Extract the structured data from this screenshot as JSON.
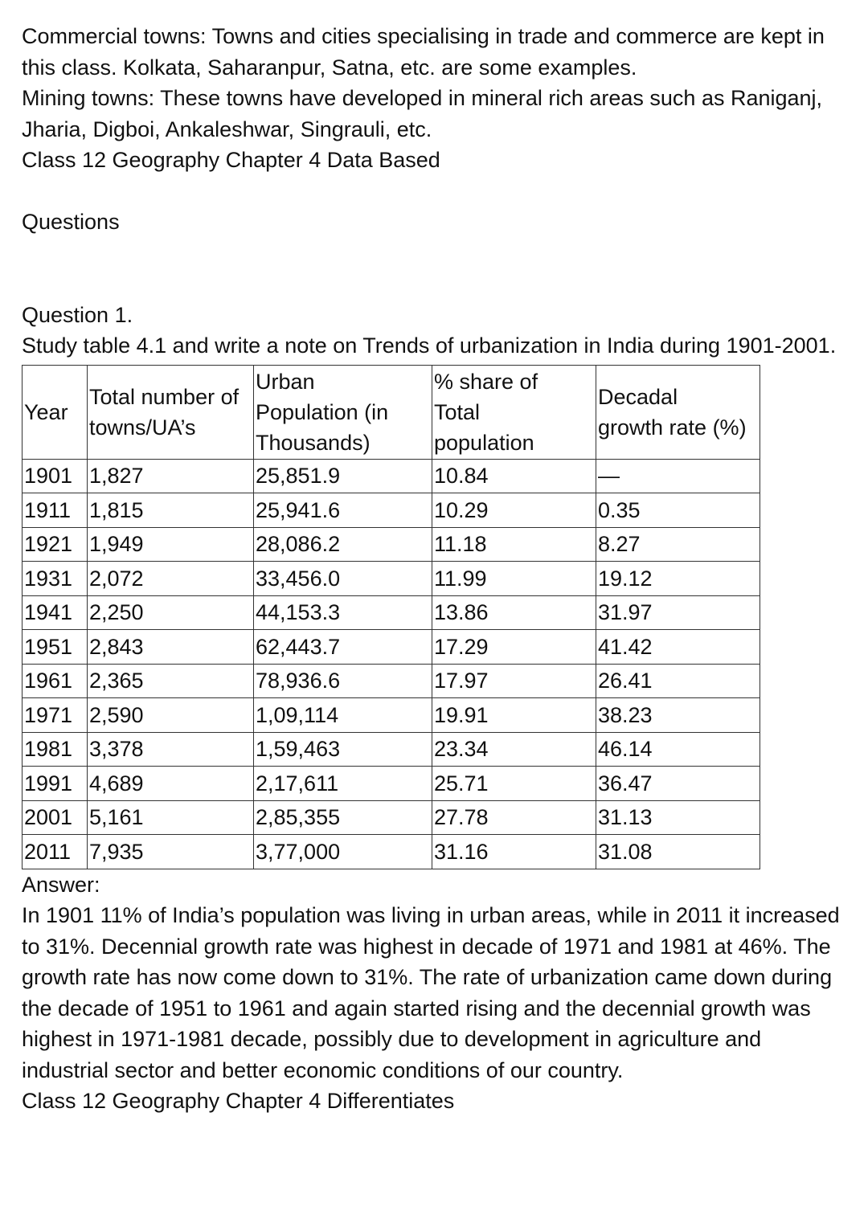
{
  "intro": {
    "commercial": "Commercial towns: Towns and cities specialising in trade and commerce are kept in this class. Kolkata, Saharanpur, Satna, etc. are some examples.",
    "mining": "Mining towns: These towns have developed in mineral rich areas such as Raniganj, Jharia, Digboi, Ankaleshwar, Singrauli, etc.",
    "section_heading": "Class 12 Geography Chapter 4 Data Based",
    "questions_label": "Questions"
  },
  "question": {
    "number": "Question 1.",
    "text": "Study table 4.1 and write a note on Trends of urbanization in India during 1901-2001."
  },
  "table": {
    "headers": {
      "year": "Year",
      "towns": [
        "Total number of",
        "towns/UA’s"
      ],
      "population": [
        "Urban",
        "Population (in",
        "Thousands)"
      ],
      "share": [
        "% share of",
        "Total",
        "population"
      ],
      "growth": [
        "Decadal",
        "growth rate (%)"
      ]
    },
    "rows": [
      [
        "1901",
        "1,827",
        "25,851.9",
        "10.84",
        "—"
      ],
      [
        "1911",
        "1,815",
        "25,941.6",
        "10.29",
        "0.35"
      ],
      [
        "1921",
        "1,949",
        "28,086.2",
        "11.18",
        "8.27"
      ],
      [
        "1931",
        "2,072",
        "33,456.0",
        "11.99",
        "19.12"
      ],
      [
        "1941",
        "2,250",
        "44,153.3",
        "13.86",
        "31.97"
      ],
      [
        "1951",
        "2,843",
        "62,443.7",
        "17.29",
        "41.42"
      ],
      [
        "1961",
        "2,365",
        "78,936.6",
        "17.97",
        "26.41"
      ],
      [
        "1971",
        "2,590",
        "1,09,114",
        "19.91",
        "38.23"
      ],
      [
        "1981",
        "3,378",
        "1,59,463",
        "23.34",
        "46.14"
      ],
      [
        "1991",
        "4,689",
        "2,17,611",
        "25.71",
        "36.47"
      ],
      [
        "2001",
        "5,161",
        "2,85,355",
        "27.78",
        "31.13"
      ],
      [
        "2011",
        "7,935",
        "3,77,000",
        "31.16",
        "31.08"
      ]
    ]
  },
  "answer": {
    "label": "Answer:",
    "text": "In 1901 11% of India’s population was living in urban areas, while in 2011 it increased to 31%. Decennial growth rate was highest in decade of 1971 and 1981 at 46%. The growth rate has now come down to 31%. The rate of urbanization came down during the decade of 1951 to 1961 and again started rising and the decennial growth was highest in 1971-1981 decade, possibly due to development in agriculture and industrial sector and better economic conditions of our country."
  },
  "footer_heading": "Class 12 Geography Chapter 4 Differentiates"
}
